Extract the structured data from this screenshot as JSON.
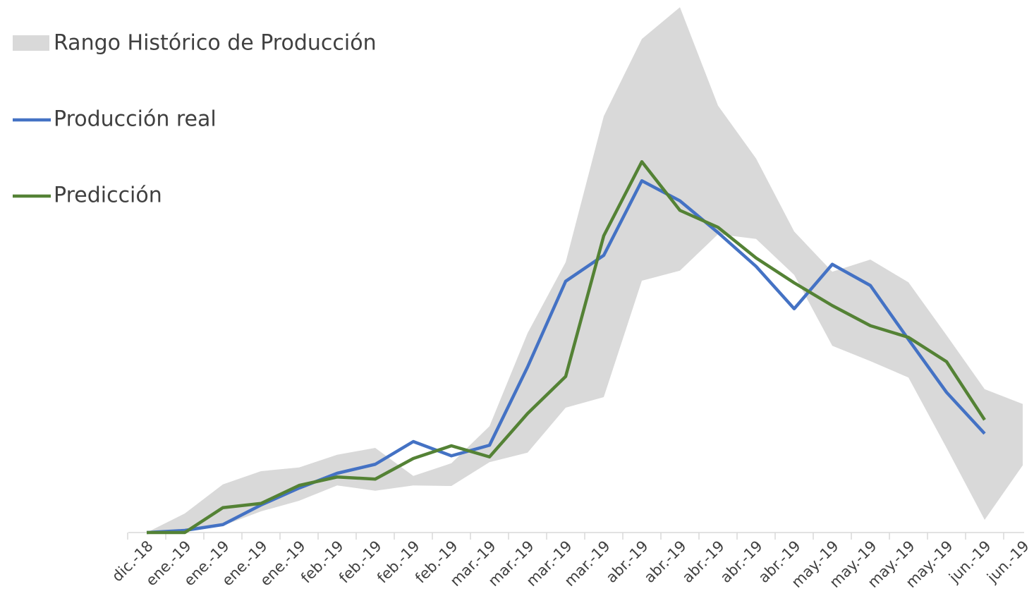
{
  "chart_data": {
    "type": "line",
    "categories": [
      "dic.-18",
      "ene.-19",
      "ene.-19",
      "ene.-19",
      "ene.-19",
      "feb.-19",
      "feb.-19",
      "feb.-19",
      "feb.-19",
      "mar.-19",
      "mar.-19",
      "mar.-19",
      "mar.-19",
      "abr.-19",
      "abr.-19",
      "abr.-19",
      "abr.-19",
      "abr.-19",
      "may.-19",
      "may.-19",
      "may.-19",
      "may.-19",
      "jun.-19",
      "jun.-19"
    ],
    "ylim": [
      0,
      100
    ],
    "legend": "top-left",
    "band": {
      "name": "Rango Histórico de Producción",
      "color": "#d9d9d9",
      "upper": [
        0,
        3.6,
        9.1,
        11.6,
        12.3,
        14.7,
        16,
        10.7,
        13.1,
        20.1,
        37.7,
        51.1,
        78.7,
        93.3,
        99.3,
        80.7,
        70.7,
        56.9,
        49.3,
        51.6,
        47.3,
        37.3,
        27.1,
        24.3
      ],
      "lower": [
        0,
        0.4,
        1.3,
        4,
        6,
        8.9,
        7.9,
        8.9,
        8.8,
        13.3,
        15.1,
        23.6,
        25.6,
        47.6,
        49.5,
        56.4,
        55.5,
        48.7,
        35.3,
        32.4,
        29.3,
        16,
        2.4,
        12.7
      ]
    },
    "series": [
      {
        "name": "Producción real",
        "color": "#4472c4",
        "values": [
          0,
          0.4,
          1.5,
          5.2,
          8.4,
          11.2,
          12.9,
          17.2,
          14.5,
          16.5,
          31.3,
          47.5,
          52.4,
          66.5,
          62.7,
          56.7,
          50.3,
          42.3,
          50.7,
          46.7,
          36.5,
          26.5,
          18.7,
          null
        ]
      },
      {
        "name": "Predicción",
        "color": "#548235",
        "values": [
          0,
          0,
          4.7,
          5.5,
          8.9,
          10.5,
          10.1,
          14,
          16.4,
          14.3,
          22.5,
          29.5,
          56.1,
          70.1,
          60.9,
          57.7,
          51.9,
          47.2,
          42.9,
          39.1,
          36.9,
          32.3,
          21.3,
          null
        ]
      }
    ]
  }
}
